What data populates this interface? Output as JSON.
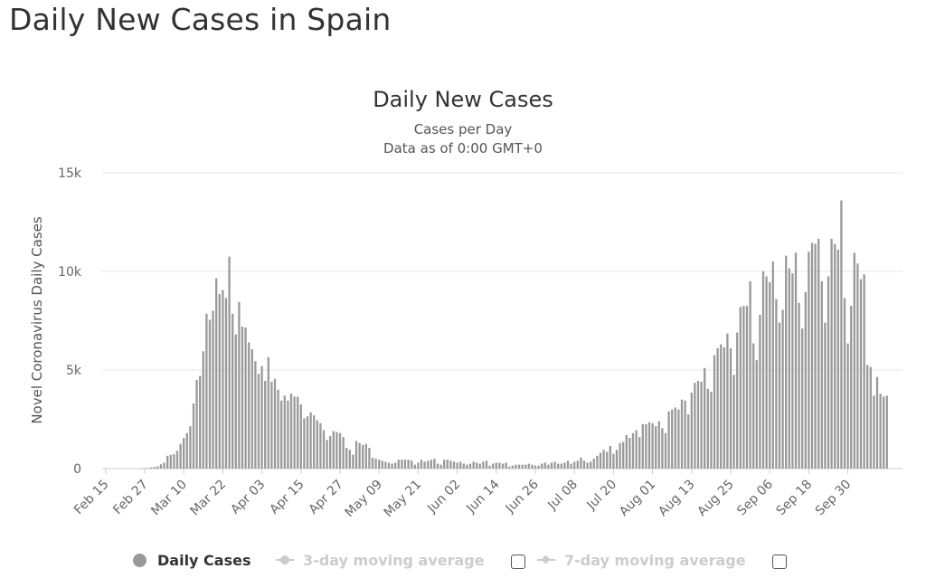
{
  "page_title": "Daily New Cases in Spain",
  "chart_data": {
    "type": "bar",
    "title": "Daily New Cases",
    "subtitle_lines": [
      "Cases per Day",
      "Data as of 0:00 GMT+0"
    ],
    "ylabel": "Novel Coronavirus Daily Cases",
    "xlabel": "",
    "ylim": [
      0,
      15000
    ],
    "yticks": [
      0,
      5000,
      10000,
      15000
    ],
    "ytick_labels": [
      "0",
      "5k",
      "10k",
      "15k"
    ],
    "x_tick_labels": [
      "Feb 15",
      "Feb 27",
      "Mar 10",
      "Mar 22",
      "Apr 03",
      "Apr 15",
      "Apr 27",
      "May 09",
      "May 21",
      "Jun 02",
      "Jun 14",
      "Jun 26",
      "Jul 08",
      "Jul 20",
      "Aug 01",
      "Aug 13",
      "Aug 25",
      "Sep 06",
      "Sep 18",
      "Sep 30"
    ],
    "tick_interval_days": 12,
    "grid": true,
    "bar_color": "#999999",
    "series": [
      {
        "name": "Daily Cases",
        "start_date": "Feb 15",
        "values": [
          0,
          0,
          0,
          0,
          0,
          0,
          0,
          0,
          0,
          0,
          0,
          5,
          10,
          30,
          60,
          80,
          120,
          220,
          300,
          650,
          700,
          730,
          900,
          1250,
          1550,
          1800,
          2150,
          3300,
          4500,
          4700,
          5950,
          7850,
          7550,
          8000,
          9650,
          8850,
          9050,
          8650,
          10750,
          7850,
          6800,
          8450,
          7200,
          7150,
          6400,
          6050,
          5450,
          4800,
          5200,
          4450,
          5650,
          4400,
          4550,
          4000,
          3450,
          3700,
          3450,
          3800,
          3650,
          3650,
          3250,
          2550,
          2650,
          2850,
          2700,
          2450,
          2300,
          1950,
          1450,
          1650,
          1900,
          1850,
          1800,
          1600,
          1050,
          950,
          700,
          1400,
          1300,
          1200,
          1250,
          1050,
          550,
          500,
          450,
          400,
          350,
          300,
          250,
          300,
          450,
          450,
          450,
          450,
          400,
          200,
          300,
          450,
          350,
          400,
          450,
          500,
          250,
          200,
          450,
          450,
          400,
          350,
          300,
          350,
          250,
          200,
          250,
          350,
          300,
          250,
          350,
          400,
          150,
          250,
          300,
          300,
          250,
          300,
          100,
          150,
          200,
          200,
          200,
          200,
          250,
          200,
          150,
          150,
          250,
          300,
          200,
          300,
          350,
          250,
          250,
          300,
          400,
          250,
          350,
          400,
          550,
          400,
          300,
          350,
          500,
          650,
          800,
          950,
          850,
          1150,
          750,
          950,
          1300,
          1350,
          1700,
          1550,
          1800,
          1950,
          1600,
          2250,
          2250,
          2350,
          2300,
          2150,
          2400,
          2050,
          1800,
          2900,
          3000,
          3100,
          3000,
          3500,
          3450,
          2750,
          3850,
          4350,
          4450,
          4400,
          5100,
          4050,
          3900,
          5750,
          6100,
          6300,
          6150,
          6850,
          6100,
          4750,
          6900,
          8200,
          8250,
          8250,
          9500,
          6350,
          5500,
          7800,
          10000,
          9750,
          9450,
          10500,
          8600,
          7400,
          8050,
          10800,
          10150,
          9900,
          10950,
          8400,
          7100,
          8950,
          11000,
          11450,
          11400,
          11650,
          9500,
          7400,
          9750,
          11650,
          11400,
          11100,
          13600,
          8650,
          6350,
          8250,
          10950,
          10400,
          9600,
          9850,
          5250,
          5150,
          3700,
          4650,
          3800,
          3650,
          3700
        ]
      }
    ],
    "legend_position": "bottom-center"
  },
  "legend": {
    "items": [
      {
        "label": "Daily Cases",
        "state": "active"
      },
      {
        "label": "3-day moving average",
        "state": "inactive"
      },
      {
        "label": "7-day moving average",
        "state": "inactive"
      }
    ]
  }
}
